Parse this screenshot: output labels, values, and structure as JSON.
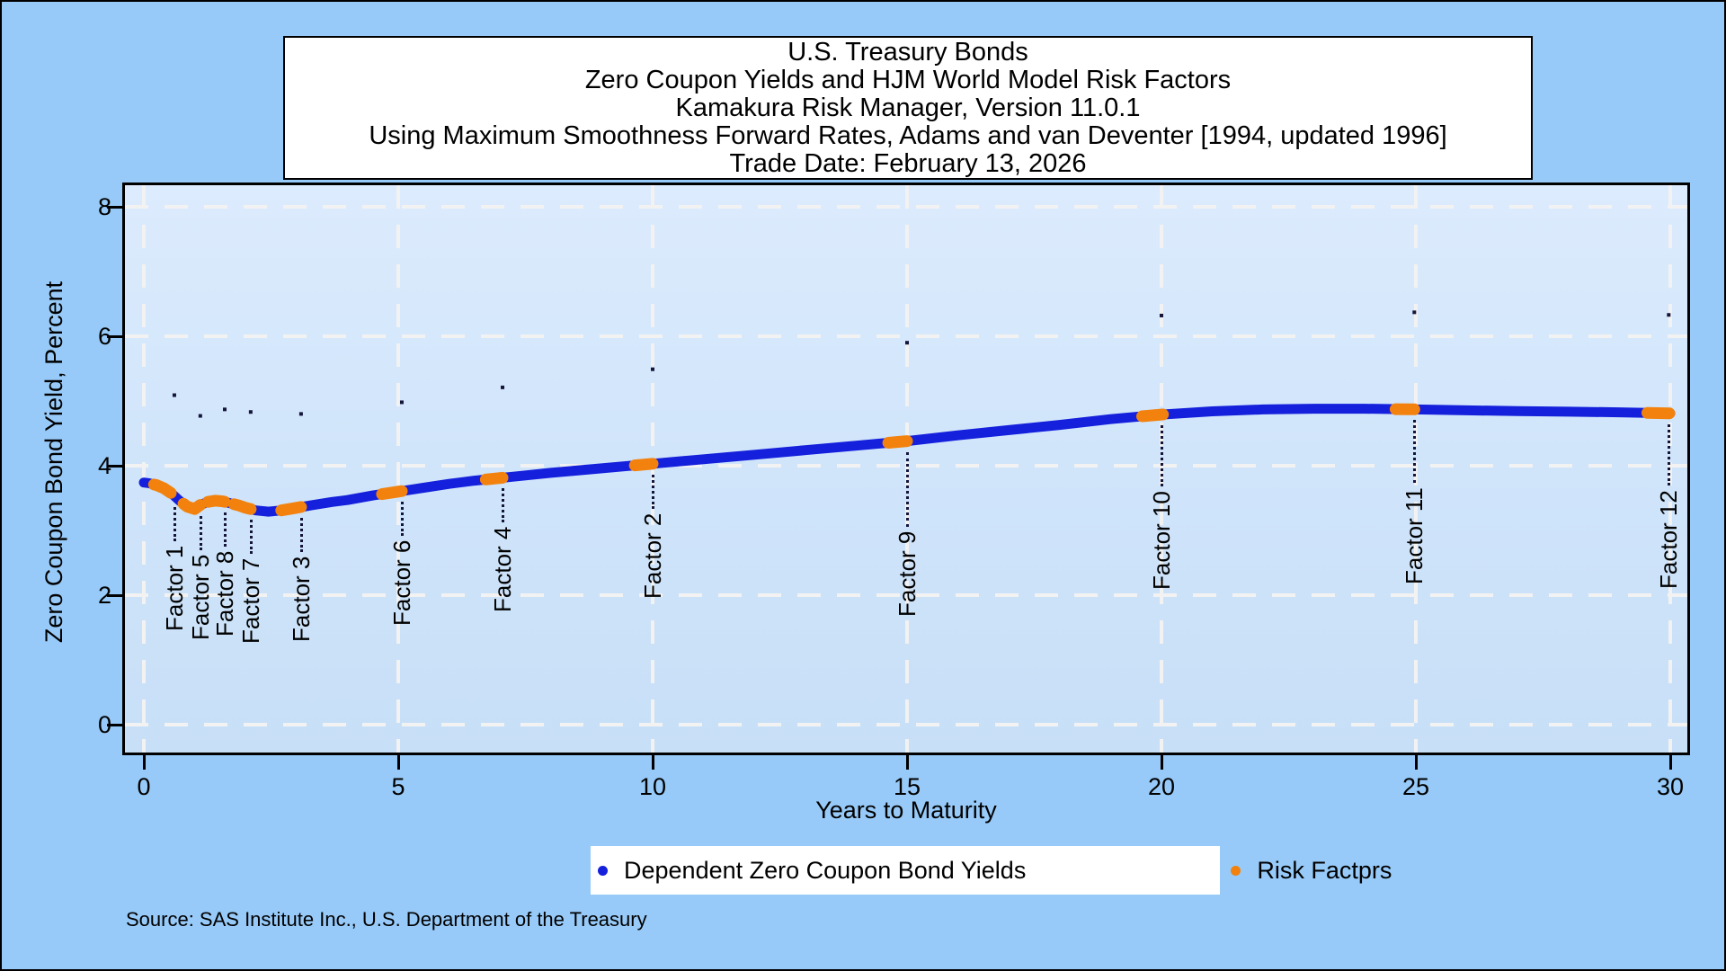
{
  "title_box": {
    "lines": [
      "U.S. Treasury Bonds",
      "Zero Coupon Yields and HJM World Model Risk Factors",
      "Kamakura Risk Manager, Version 11.0.1",
      "Using Maximum Smoothness Forward Rates, Adams and van Deventer [1994, updated 1996]",
      "Trade Date: February 13, 2026"
    ]
  },
  "y_axis": {
    "title": "Zero Coupon Bond Yield, Percent",
    "ticks": [
      0,
      2,
      4,
      6,
      8
    ]
  },
  "x_axis": {
    "title": "Years to Maturity",
    "ticks": [
      0,
      5,
      10,
      15,
      20,
      25,
      30
    ]
  },
  "legend": {
    "items": [
      {
        "label": "Dependent Zero Coupon Bond Yields",
        "color": "#1420DC"
      },
      {
        "label": "Risk Factprs",
        "color": "#F2820D"
      }
    ]
  },
  "source": "Source: SAS Institute Inc., U.S. Department of the Treasury",
  "colors": {
    "page_background": "#97CAF8",
    "plot_background_top": "#DCEBFD",
    "plot_background_bottom": "#C7DFF7",
    "curve_blue": "#1420DC",
    "factor_orange": "#F2820D",
    "gridline": "#F2F2F2",
    "annotation_dot": "#15153A"
  },
  "chart_data": {
    "type": "line",
    "title": "U.S. Treasury Bonds - Zero Coupon Yields and HJM World Model Risk Factors",
    "xlabel": "Years to Maturity",
    "ylabel": "Zero Coupon Bond Yield, Percent",
    "xlim": [
      0,
      30
    ],
    "ylim": [
      0,
      8
    ],
    "x_ticks": [
      0,
      5,
      10,
      15,
      20,
      25,
      30
    ],
    "y_ticks": [
      0,
      2,
      4,
      6,
      8
    ],
    "grid": "white dashed on all ticks",
    "legend_position": "bottom",
    "series": [
      {
        "name": "Dependent Zero Coupon Bond Yields",
        "color": "#1420DC",
        "points": [
          [
            0,
            3.74
          ],
          [
            0.1,
            3.73
          ],
          [
            0.25,
            3.7
          ],
          [
            0.4,
            3.65
          ],
          [
            0.55,
            3.57
          ],
          [
            0.7,
            3.46
          ],
          [
            0.85,
            3.37
          ],
          [
            1,
            3.33
          ],
          [
            1.1,
            3.39
          ],
          [
            1.25,
            3.44
          ],
          [
            1.4,
            3.46
          ],
          [
            1.55,
            3.45
          ],
          [
            1.7,
            3.42
          ],
          [
            1.85,
            3.39
          ],
          [
            2,
            3.35
          ],
          [
            2.2,
            3.31
          ],
          [
            2.45,
            3.29
          ],
          [
            2.7,
            3.31
          ],
          [
            3,
            3.35
          ],
          [
            3.3,
            3.39
          ],
          [
            3.7,
            3.44
          ],
          [
            4,
            3.47
          ],
          [
            4.5,
            3.54
          ],
          [
            5,
            3.6
          ],
          [
            5.5,
            3.66
          ],
          [
            6,
            3.72
          ],
          [
            6.5,
            3.77
          ],
          [
            7,
            3.81
          ],
          [
            7.5,
            3.85
          ],
          [
            8,
            3.89
          ],
          [
            9,
            3.96
          ],
          [
            10,
            4.03
          ],
          [
            11,
            4.1
          ],
          [
            12,
            4.17
          ],
          [
            13,
            4.24
          ],
          [
            14,
            4.31
          ],
          [
            15,
            4.38
          ],
          [
            16,
            4.47
          ],
          [
            17,
            4.55
          ],
          [
            18,
            4.63
          ],
          [
            19,
            4.72
          ],
          [
            20,
            4.79
          ],
          [
            21,
            4.84
          ],
          [
            22,
            4.87
          ],
          [
            23,
            4.88
          ],
          [
            24,
            4.88
          ],
          [
            25,
            4.87
          ],
          [
            26,
            4.855
          ],
          [
            27,
            4.845
          ],
          [
            28,
            4.835
          ],
          [
            29,
            4.825
          ],
          [
            30,
            4.81
          ]
        ]
      }
    ],
    "risk_factors": [
      {
        "label": "Factor 1",
        "x": 0.6,
        "segment": [
          0.2,
          0.53
        ],
        "marker_y": 5.09
      },
      {
        "label": "Factor 5",
        "x": 1.11,
        "segment": [
          0.78,
          1.11
        ],
        "marker_y": 4.77
      },
      {
        "label": "Factor 8",
        "x": 1.59,
        "segment": [
          1.26,
          1.59
        ],
        "marker_y": 4.87
      },
      {
        "label": "Factor 7",
        "x": 2.1,
        "segment": [
          1.77,
          2.1
        ],
        "marker_y": 4.83
      },
      {
        "label": "Factor 3",
        "x": 3.09,
        "segment": [
          2.7,
          3.09
        ],
        "marker_y": 4.8
      },
      {
        "label": "Factor 6",
        "x": 5.07,
        "segment": [
          4.68,
          5.07
        ],
        "marker_y": 4.98
      },
      {
        "label": "Factor 4",
        "x": 7.05,
        "segment": [
          6.72,
          7.05
        ],
        "marker_y": 5.21
      },
      {
        "label": "Factor 2",
        "x": 10.0,
        "segment": [
          9.65,
          10.0
        ],
        "marker_y": 5.49
      },
      {
        "label": "Factor 9",
        "x": 15.0,
        "segment": [
          14.63,
          15.0
        ],
        "marker_y": 5.9
      },
      {
        "label": "Factor 10",
        "x": 20.0,
        "segment": [
          19.62,
          20.03
        ],
        "marker_y": 6.32
      },
      {
        "label": "Factor 11",
        "x": 24.97,
        "segment": [
          24.6,
          24.97
        ],
        "marker_y": 6.37
      },
      {
        "label": "Factor 12",
        "x": 29.97,
        "segment": [
          29.55,
          29.98
        ],
        "marker_y": 6.33
      }
    ]
  }
}
